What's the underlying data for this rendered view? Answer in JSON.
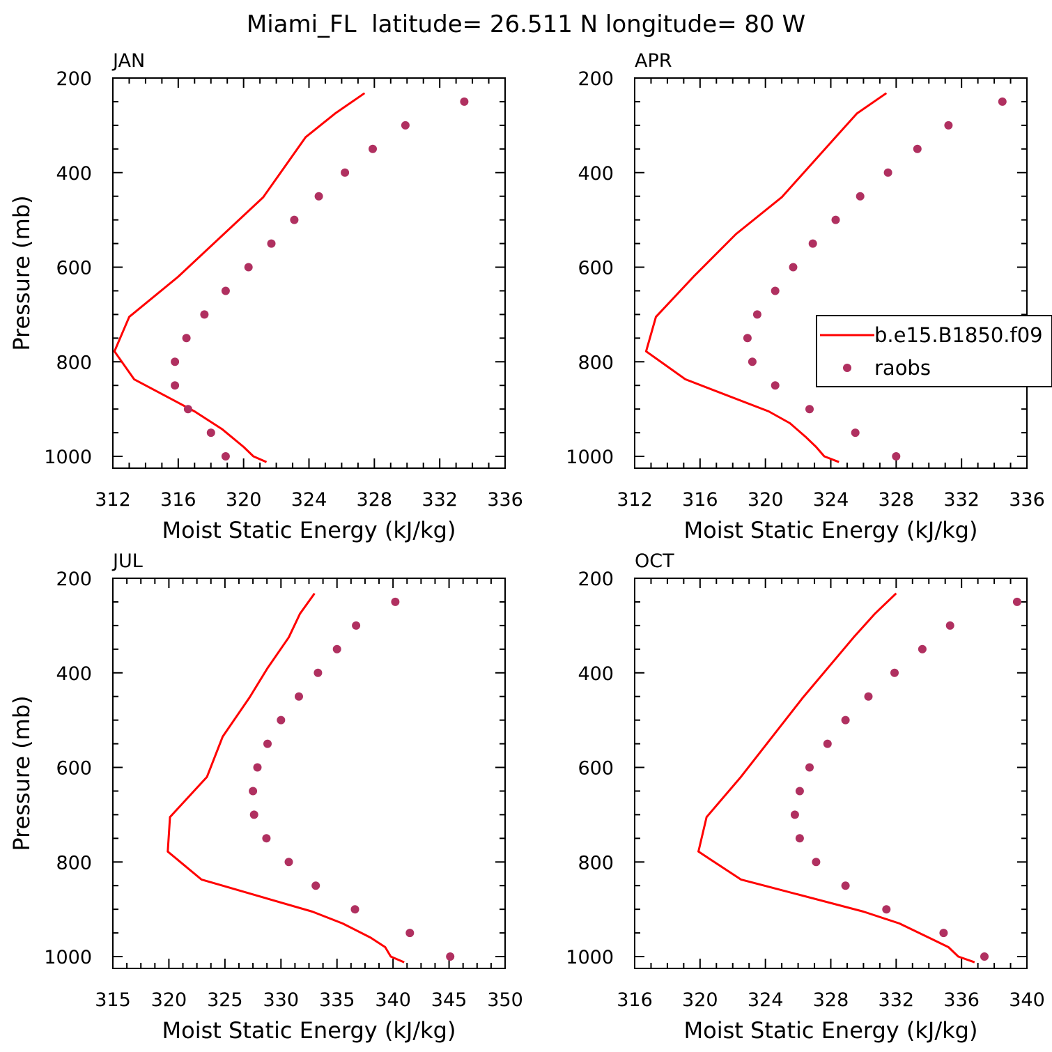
{
  "figure_title": "Miami_FL  latitude= 26.511 N longitude= 80 W",
  "legend": {
    "line_label": "b.e15.B1850.f09",
    "dot_label": "raobs",
    "placement": "overlapping right edge of APR panel"
  },
  "colors": {
    "model_line": "#ff0000",
    "raobs_marker": "#b03060",
    "axes": "#000000",
    "background": "#ffffff"
  },
  "chart_data": [
    {
      "type": "line",
      "title": "JAN",
      "xlabel": "Moist Static Energy (kJ/kg)",
      "ylabel": "Pressure (mb)",
      "xlim": [
        312,
        336
      ],
      "ylim": [
        1025,
        200
      ],
      "xticks": [
        312,
        316,
        320,
        324,
        328,
        332,
        336
      ],
      "yticks": [
        200,
        400,
        600,
        800,
        1000
      ],
      "grid": false,
      "series": [
        {
          "name": "b.e15.B1850.f09",
          "kind": "line",
          "points": [
            [
              327.4,
              232
            ],
            [
              325.6,
              275
            ],
            [
              323.8,
              325
            ],
            [
              321.2,
              452
            ],
            [
              316.0,
              620
            ],
            [
              313.0,
              705
            ],
            [
              312.1,
              778
            ],
            [
              313.3,
              837
            ],
            [
              317.0,
              905
            ],
            [
              318.7,
              943
            ],
            [
              320.0,
              980
            ],
            [
              320.6,
              1000
            ],
            [
              321.4,
              1012
            ]
          ]
        },
        {
          "name": "raobs",
          "kind": "scatter",
          "points": [
            [
              333.5,
              250
            ],
            [
              329.9,
              300
            ],
            [
              327.9,
              350
            ],
            [
              326.2,
              400
            ],
            [
              324.6,
              450
            ],
            [
              323.1,
              500
            ],
            [
              321.7,
              550
            ],
            [
              320.3,
              600
            ],
            [
              318.9,
              650
            ],
            [
              317.6,
              700
            ],
            [
              316.5,
              750
            ],
            [
              315.8,
              800
            ],
            [
              315.8,
              850
            ],
            [
              316.6,
              900
            ],
            [
              318.0,
              950
            ],
            [
              318.9,
              1000
            ]
          ]
        }
      ]
    },
    {
      "type": "line",
      "title": "APR",
      "xlabel": "Moist Static Energy (kJ/kg)",
      "ylabel": "",
      "xlim": [
        312,
        336
      ],
      "ylim": [
        1025,
        200
      ],
      "xticks": [
        312,
        316,
        320,
        324,
        328,
        332,
        336
      ],
      "yticks": [
        200,
        400,
        600,
        800,
        1000
      ],
      "grid": false,
      "series": [
        {
          "name": "b.e15.B1850.f09",
          "kind": "line",
          "points": [
            [
              327.4,
              232
            ],
            [
              325.6,
              275
            ],
            [
              324.3,
              325
            ],
            [
              321.0,
              452
            ],
            [
              318.2,
              530
            ],
            [
              315.6,
              620
            ],
            [
              313.3,
              705
            ],
            [
              312.7,
              778
            ],
            [
              315.1,
              837
            ],
            [
              320.2,
              905
            ],
            [
              321.5,
              930
            ],
            [
              322.5,
              960
            ],
            [
              323.1,
              980
            ],
            [
              323.6,
              1000
            ],
            [
              324.5,
              1012
            ]
          ]
        },
        {
          "name": "raobs",
          "kind": "scatter",
          "points": [
            [
              334.5,
              250
            ],
            [
              331.2,
              300
            ],
            [
              329.3,
              350
            ],
            [
              327.5,
              400
            ],
            [
              325.8,
              450
            ],
            [
              324.3,
              500
            ],
            [
              322.9,
              550
            ],
            [
              321.7,
              600
            ],
            [
              320.6,
              650
            ],
            [
              319.5,
              700
            ],
            [
              318.9,
              750
            ],
            [
              319.2,
              800
            ],
            [
              320.6,
              850
            ],
            [
              322.7,
              900
            ],
            [
              325.5,
              950
            ],
            [
              328.0,
              1000
            ]
          ]
        }
      ]
    },
    {
      "type": "line",
      "title": "JUL",
      "xlabel": "Moist Static Energy (kJ/kg)",
      "ylabel": "Pressure (mb)",
      "xlim": [
        315,
        350
      ],
      "ylim": [
        1025,
        200
      ],
      "xticks": [
        315,
        320,
        325,
        330,
        335,
        340,
        345,
        350
      ],
      "yticks": [
        200,
        400,
        600,
        800,
        1000
      ],
      "grid": false,
      "series": [
        {
          "name": "b.e15.B1850.f09",
          "kind": "line",
          "points": [
            [
              333.0,
              232
            ],
            [
              331.7,
              275
            ],
            [
              330.7,
              325
            ],
            [
              328.8,
              390
            ],
            [
              327.2,
              452
            ],
            [
              324.8,
              535
            ],
            [
              323.4,
              620
            ],
            [
              320.1,
              705
            ],
            [
              319.9,
              778
            ],
            [
              322.9,
              837
            ],
            [
              332.8,
              905
            ],
            [
              335.5,
              930
            ],
            [
              338.0,
              960
            ],
            [
              339.3,
              980
            ],
            [
              339.8,
              1000
            ],
            [
              341.0,
              1012
            ]
          ]
        },
        {
          "name": "raobs",
          "kind": "scatter",
          "points": [
            [
              340.2,
              250
            ],
            [
              336.7,
              300
            ],
            [
              335.0,
              350
            ],
            [
              333.3,
              400
            ],
            [
              331.6,
              450
            ],
            [
              330.0,
              500
            ],
            [
              328.8,
              550
            ],
            [
              327.9,
              600
            ],
            [
              327.5,
              650
            ],
            [
              327.6,
              700
            ],
            [
              328.7,
              750
            ],
            [
              330.7,
              800
            ],
            [
              333.1,
              850
            ],
            [
              336.6,
              900
            ],
            [
              341.5,
              950
            ],
            [
              345.1,
              1000
            ]
          ]
        }
      ]
    },
    {
      "type": "line",
      "title": "OCT",
      "xlabel": "Moist Static Energy (kJ/kg)",
      "ylabel": "",
      "xlim": [
        316,
        340
      ],
      "ylim": [
        1025,
        200
      ],
      "xticks": [
        316,
        320,
        324,
        328,
        332,
        336,
        340
      ],
      "yticks": [
        200,
        400,
        600,
        800,
        1000
      ],
      "grid": false,
      "series": [
        {
          "name": "b.e15.B1850.f09",
          "kind": "line",
          "points": [
            [
              332.0,
              232
            ],
            [
              330.7,
              275
            ],
            [
              329.4,
              325
            ],
            [
              326.3,
              452
            ],
            [
              322.5,
              620
            ],
            [
              320.4,
              705
            ],
            [
              319.9,
              778
            ],
            [
              322.5,
              837
            ],
            [
              330.0,
              905
            ],
            [
              332.2,
              930
            ],
            [
              334.0,
              960
            ],
            [
              335.2,
              980
            ],
            [
              335.8,
              1000
            ],
            [
              336.8,
              1012
            ]
          ]
        },
        {
          "name": "raobs",
          "kind": "scatter",
          "points": [
            [
              339.4,
              250
            ],
            [
              335.3,
              300
            ],
            [
              333.6,
              350
            ],
            [
              331.9,
              400
            ],
            [
              330.3,
              450
            ],
            [
              328.9,
              500
            ],
            [
              327.8,
              550
            ],
            [
              326.7,
              600
            ],
            [
              326.1,
              650
            ],
            [
              325.8,
              700
            ],
            [
              326.1,
              750
            ],
            [
              327.1,
              800
            ],
            [
              328.9,
              850
            ],
            [
              331.4,
              900
            ],
            [
              334.9,
              950
            ],
            [
              337.4,
              1000
            ]
          ]
        }
      ]
    }
  ]
}
